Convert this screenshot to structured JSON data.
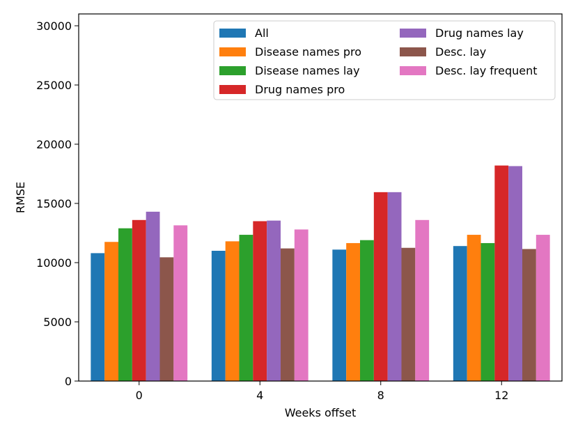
{
  "chart_data": {
    "type": "bar",
    "title": "",
    "xlabel": "Weeks offset",
    "ylabel": "RMSE",
    "categories": [
      "0",
      "4",
      "8",
      "12"
    ],
    "ylim": [
      0,
      31000
    ],
    "yticks": [
      0,
      5000,
      10000,
      15000,
      20000,
      25000,
      30000
    ],
    "ytick_labels": [
      "0",
      "5000",
      "10000",
      "15000",
      "20000",
      "25000",
      "30000"
    ],
    "grid": false,
    "legend_position": "top-right",
    "series": [
      {
        "name": "All",
        "color": "#1f77b4",
        "values": [
          10800,
          11000,
          11100,
          11400
        ]
      },
      {
        "name": "Disease names pro",
        "color": "#ff7f0e",
        "values": [
          11750,
          11800,
          11650,
          12350
        ]
      },
      {
        "name": "Disease names lay",
        "color": "#2ca02c",
        "values": [
          12900,
          12350,
          11900,
          11650
        ]
      },
      {
        "name": "Drug names pro",
        "color": "#d62728",
        "values": [
          13600,
          13500,
          15950,
          18200
        ]
      },
      {
        "name": "Drug names lay",
        "color": "#9467bd",
        "values": [
          14300,
          13550,
          15950,
          18150
        ]
      },
      {
        "name": "Desc. lay",
        "color": "#8c564b",
        "values": [
          10450,
          11200,
          11250,
          11150
        ]
      },
      {
        "name": "Desc. lay frequent",
        "color": "#e377c2",
        "values": [
          13150,
          12800,
          13600,
          12350
        ]
      }
    ]
  }
}
